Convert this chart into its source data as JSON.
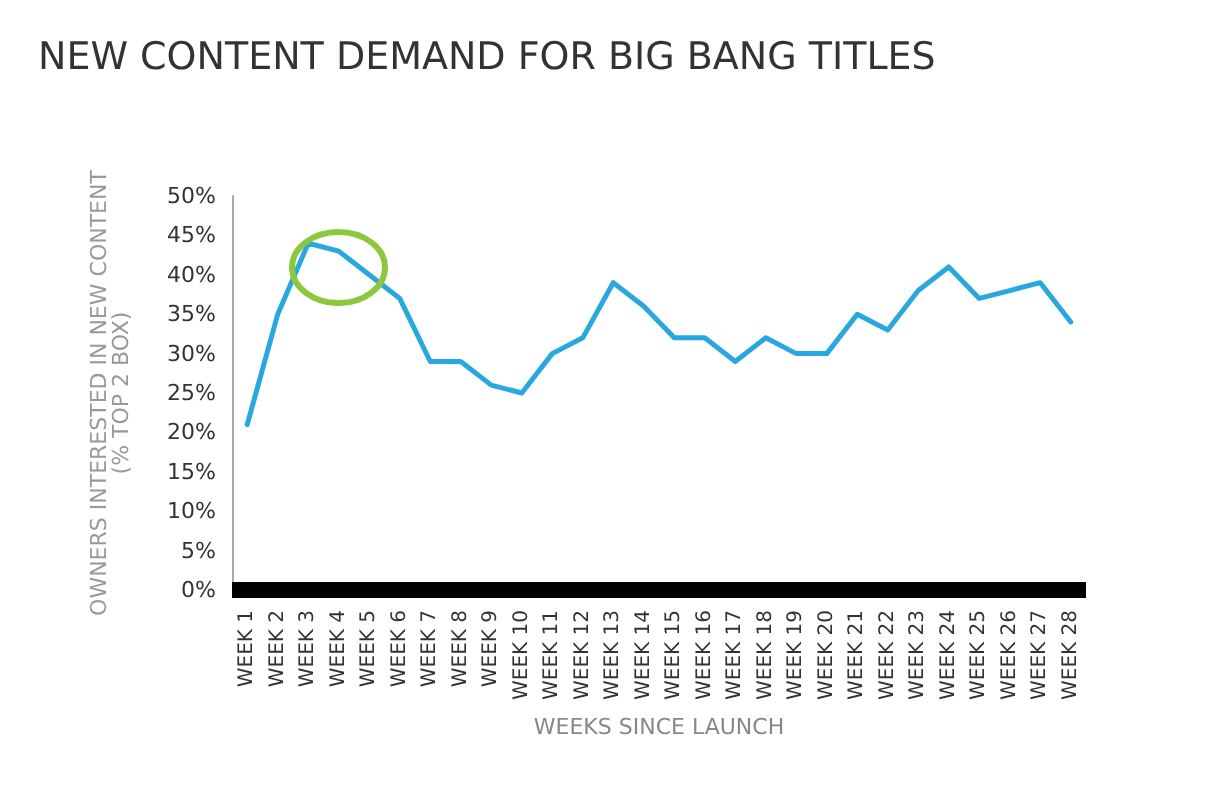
{
  "chart_data": {
    "type": "line",
    "title": "NEW CONTENT DEMAND FOR BIG BANG TITLES",
    "xlabel": "WEEKS SINCE LAUNCH",
    "ylabel": "OWNERS INTERESTED IN NEW CONTENT\n(% TOP 2 BOX)",
    "categories": [
      "WEEK 1",
      "WEEK 2",
      "WEEK 3",
      "WEEK 4",
      "WEEK 5",
      "WEEK 6",
      "WEEK 7",
      "WEEK 8",
      "WEEK 9",
      "WEEK 10",
      "WEEK 11",
      "WEEK 12",
      "WEEK 13",
      "WEEK 14",
      "WEEK 15",
      "WEEK 16",
      "WEEK 17",
      "WEEK 18",
      "WEEK 19",
      "WEEK 20",
      "WEEK 21",
      "WEEK 22",
      "WEEK 23",
      "WEEK 24",
      "WEEK 25",
      "WEEK 26",
      "WEEK 27",
      "WEEK 28"
    ],
    "series": [
      {
        "color": "#29a8e0",
        "values": [
          21,
          35,
          44,
          43,
          40,
          37,
          29,
          29,
          26,
          25,
          30,
          32,
          39,
          36,
          32,
          32,
          29,
          32,
          30,
          30,
          35,
          33,
          38,
          41,
          37,
          38,
          39,
          34
        ]
      }
    ],
    "ylim": [
      0,
      50
    ],
    "yticks": [
      {
        "value": 0,
        "label": "0%"
      },
      {
        "value": 5,
        "label": "5%"
      },
      {
        "value": 10,
        "label": "10%"
      },
      {
        "value": 15,
        "label": "15%"
      },
      {
        "value": 20,
        "label": "20%"
      },
      {
        "value": 25,
        "label": "25%"
      },
      {
        "value": 30,
        "label": "30%"
      },
      {
        "value": 35,
        "label": "35%"
      },
      {
        "value": 40,
        "label": "40%"
      },
      {
        "value": 45,
        "label": "45%"
      },
      {
        "value": 50,
        "label": "50%"
      }
    ],
    "grid": false,
    "marker": "none",
    "line_style": "solid"
  }
}
